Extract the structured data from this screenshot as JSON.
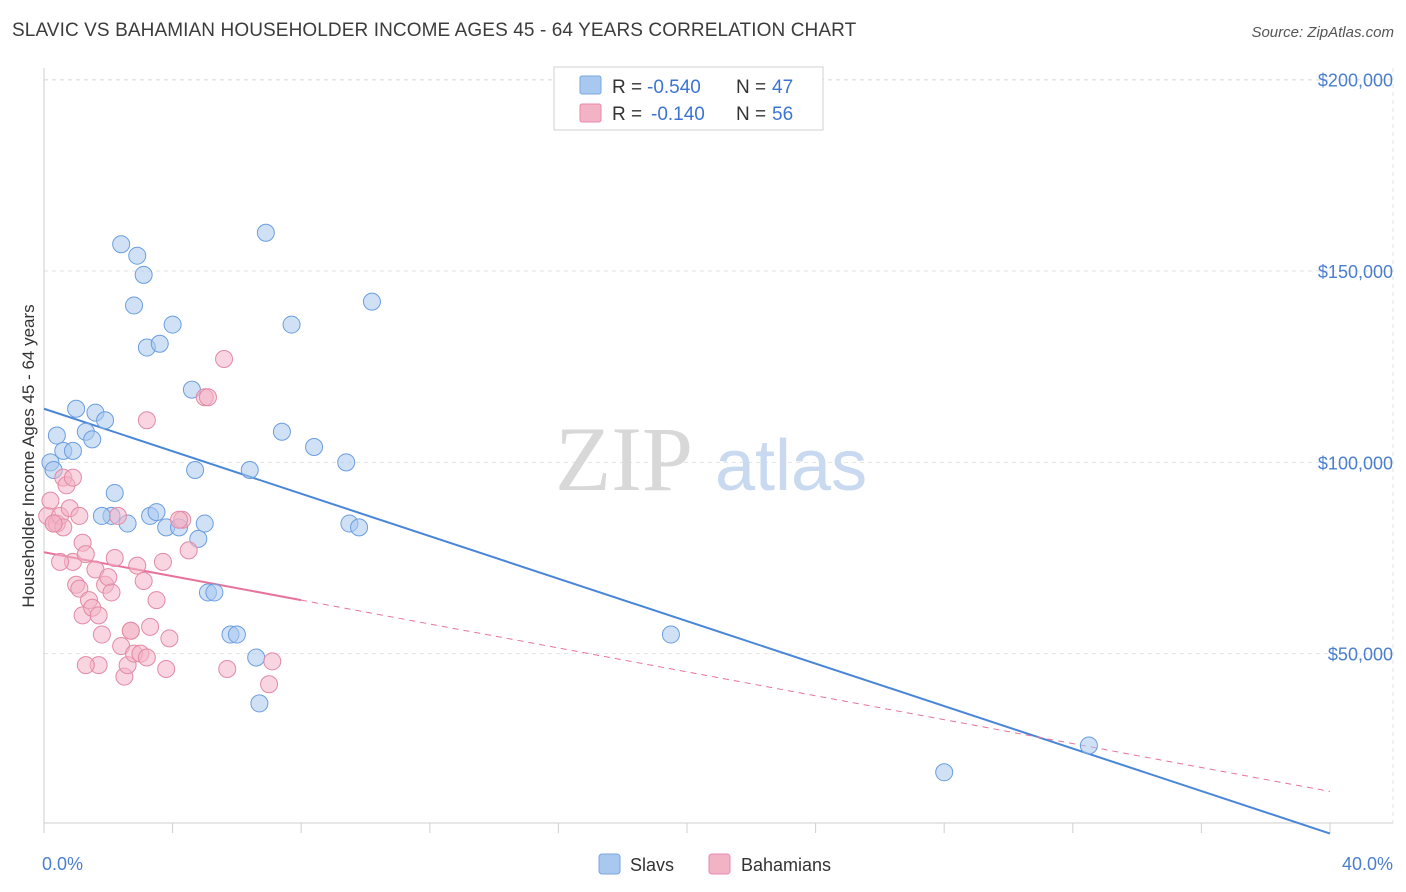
{
  "title": "SLAVIC VS BAHAMIAN HOUSEHOLDER INCOME AGES 45 - 64 YEARS CORRELATION CHART",
  "source": "Source: ZipAtlas.com",
  "watermark": {
    "zip": "ZIP",
    "atlas": "atlas"
  },
  "legend": {
    "rows": [
      {
        "r_label": "R =",
        "r_value": "-0.540",
        "n_label": "N =",
        "n_value": "47",
        "color": "#a9c8ef"
      },
      {
        "r_label": "R =",
        "r_value": "-0.140",
        "n_label": "N =",
        "n_value": "56",
        "color": "#f3b3c6"
      }
    ]
  },
  "bottom_legend": [
    {
      "label": "Slavs",
      "color": "#a9c8ef"
    },
    {
      "label": "Bahamians",
      "color": "#f3b3c6"
    }
  ],
  "chart_data": {
    "type": "scatter",
    "title": "SLAVIC VS BAHAMIAN HOUSEHOLDER INCOME AGES 45 - 64 YEARS CORRELATION CHART",
    "xlabel": "",
    "ylabel": "Householder Income Ages 45 - 64 years",
    "xlim": [
      0,
      40
    ],
    "ylim": [
      0,
      210000
    ],
    "x_tick_labels": [
      "0.0%",
      "40.0%"
    ],
    "y_ticks": [
      50000,
      100000,
      150000,
      200000
    ],
    "y_tick_labels": [
      "$50,000",
      "$100,000",
      "$150,000",
      "$200,000"
    ],
    "grid": true,
    "colors": {
      "slavs": "#4a86d8",
      "bahamians": "#e8739a",
      "slavs_fill": "#a9c8ef",
      "bahamians_fill": "#f3b3c6"
    },
    "series": [
      {
        "name": "Slavs",
        "points": [
          [
            0.2,
            100000
          ],
          [
            0.4,
            107000
          ],
          [
            0.6,
            103000
          ],
          [
            0.9,
            103000
          ],
          [
            1.0,
            114000
          ],
          [
            1.3,
            108000
          ],
          [
            1.6,
            113000
          ],
          [
            1.5,
            106000
          ],
          [
            1.9,
            111000
          ],
          [
            2.2,
            92000
          ],
          [
            2.1,
            86000
          ],
          [
            2.6,
            84000
          ],
          [
            2.4,
            157000
          ],
          [
            2.8,
            141000
          ],
          [
            2.9,
            154000
          ],
          [
            3.1,
            149000
          ],
          [
            3.2,
            130000
          ],
          [
            3.6,
            131000
          ],
          [
            3.3,
            86000
          ],
          [
            3.5,
            87000
          ],
          [
            4.0,
            136000
          ],
          [
            3.8,
            83000
          ],
          [
            4.2,
            83000
          ],
          [
            4.6,
            119000
          ],
          [
            4.7,
            98000
          ],
          [
            4.8,
            80000
          ],
          [
            5.0,
            84000
          ],
          [
            5.1,
            66000
          ],
          [
            5.8,
            55000
          ],
          [
            6.0,
            55000
          ],
          [
            6.4,
            98000
          ],
          [
            6.6,
            49000
          ],
          [
            6.7,
            37000
          ],
          [
            6.9,
            160000
          ],
          [
            7.4,
            108000
          ],
          [
            7.7,
            136000
          ],
          [
            8.4,
            104000
          ],
          [
            9.4,
            100000
          ],
          [
            9.5,
            84000
          ],
          [
            9.8,
            83000
          ],
          [
            10.2,
            142000
          ],
          [
            19.5,
            55000
          ],
          [
            32.5,
            26000
          ],
          [
            28.0,
            19000
          ],
          [
            0.3,
            98000
          ],
          [
            1.8,
            86000
          ],
          [
            5.3,
            66000
          ]
        ]
      },
      {
        "name": "Bahamians",
        "points": [
          [
            0.1,
            86000
          ],
          [
            0.2,
            90000
          ],
          [
            0.3,
            84000
          ],
          [
            0.4,
            84000
          ],
          [
            0.5,
            86000
          ],
          [
            0.6,
            96000
          ],
          [
            0.7,
            94000
          ],
          [
            0.8,
            88000
          ],
          [
            0.9,
            74000
          ],
          [
            1.0,
            68000
          ],
          [
            1.1,
            67000
          ],
          [
            1.2,
            60000
          ],
          [
            1.2,
            79000
          ],
          [
            1.3,
            76000
          ],
          [
            1.4,
            64000
          ],
          [
            1.5,
            62000
          ],
          [
            1.6,
            72000
          ],
          [
            1.7,
            60000
          ],
          [
            1.7,
            47000
          ],
          [
            1.8,
            55000
          ],
          [
            1.9,
            68000
          ],
          [
            2.0,
            70000
          ],
          [
            2.1,
            66000
          ],
          [
            2.2,
            75000
          ],
          [
            2.3,
            86000
          ],
          [
            2.4,
            52000
          ],
          [
            2.5,
            44000
          ],
          [
            2.6,
            47000
          ],
          [
            2.7,
            56000
          ],
          [
            2.8,
            50000
          ],
          [
            2.9,
            73000
          ],
          [
            3.0,
            50000
          ],
          [
            3.1,
            69000
          ],
          [
            3.2,
            111000
          ],
          [
            3.3,
            57000
          ],
          [
            3.5,
            64000
          ],
          [
            3.7,
            74000
          ],
          [
            3.8,
            46000
          ],
          [
            3.9,
            54000
          ],
          [
            4.3,
            85000
          ],
          [
            4.5,
            77000
          ],
          [
            5.0,
            117000
          ],
          [
            5.1,
            117000
          ],
          [
            5.6,
            127000
          ],
          [
            5.7,
            46000
          ],
          [
            7.0,
            42000
          ],
          [
            7.1,
            48000
          ],
          [
            0.9,
            96000
          ],
          [
            1.3,
            47000
          ],
          [
            0.6,
            83000
          ],
          [
            0.3,
            84000
          ],
          [
            2.7,
            56000
          ],
          [
            1.1,
            86000
          ],
          [
            0.5,
            74000
          ],
          [
            3.2,
            49000
          ],
          [
            4.2,
            85000
          ]
        ]
      }
    ],
    "trendlines": [
      {
        "series": "Slavs",
        "x": [
          0,
          40
        ],
        "y": [
          114000,
          3000
        ],
        "style": "solid"
      },
      {
        "series": "Bahamians",
        "x": [
          0,
          8
        ],
        "y": [
          76500,
          64000
        ],
        "style": "solid"
      },
      {
        "series": "Bahamians",
        "x": [
          8,
          40
        ],
        "y": [
          64000,
          14000
        ],
        "style": "dashed"
      }
    ]
  },
  "axis_labels": {
    "ylabel": "Householder Income Ages 45 - 64 years",
    "x_min_label": "0.0%",
    "x_max_label": "40.0%"
  }
}
